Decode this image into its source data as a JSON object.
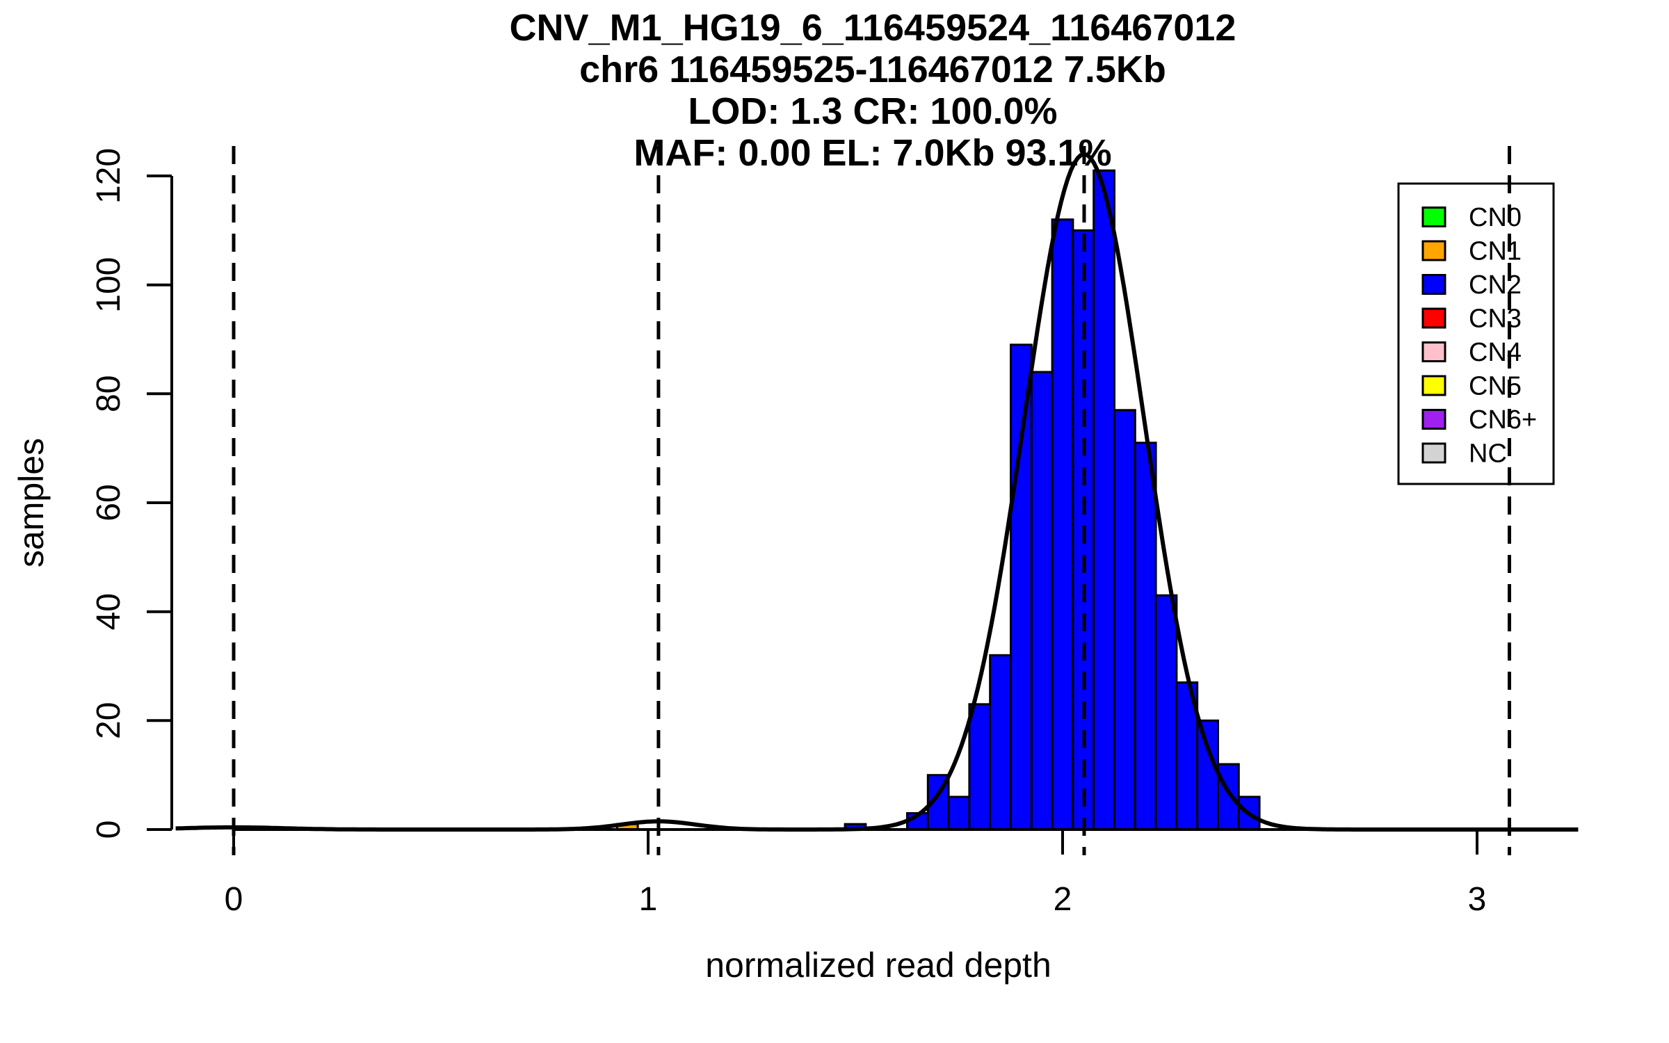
{
  "figure": {
    "title_lines": [
      "CNV_M1_HG19_6_116459524_116467012",
      "chr6 116459525-116467012 7.5Kb",
      "LOD: 1.3 CR: 100.0%",
      "MAF: 0.00 EL: 7.0Kb 93.1%"
    ],
    "x_label": "normalized read depth",
    "y_label": "samples"
  },
  "chart_data": {
    "type": "bar",
    "subtype": "histogram-with-fit-curve",
    "title": "CNV_M1_HG19_6_116459524_116467012",
    "subtitle_lines": [
      "chr6 116459525-116467012 7.5Kb",
      "LOD: 1.3 CR: 100.0%",
      "MAF: 0.00 EL: 7.0Kb 93.1%"
    ],
    "xlabel": "normalized read depth",
    "ylabel": "samples",
    "xlim": [
      -0.15,
      3.25
    ],
    "ylim": [
      0,
      120
    ],
    "x_ticks": [
      0,
      1,
      2,
      3
    ],
    "y_ticks": [
      0,
      20,
      40,
      60,
      80,
      100,
      120
    ],
    "grid": false,
    "bin_width": 0.05,
    "series": [
      {
        "name": "CN1",
        "color": "#FFA500",
        "bars": [
          {
            "x0": 0.925,
            "x1": 0.975,
            "count": 1
          }
        ]
      },
      {
        "name": "CN2",
        "color": "#0000FF",
        "bars": [
          {
            "x0": 1.475,
            "x1": 1.525,
            "count": 1
          },
          {
            "x0": 1.625,
            "x1": 1.675,
            "count": 3
          },
          {
            "x0": 1.675,
            "x1": 1.725,
            "count": 10
          },
          {
            "x0": 1.725,
            "x1": 1.775,
            "count": 6
          },
          {
            "x0": 1.775,
            "x1": 1.825,
            "count": 23
          },
          {
            "x0": 1.825,
            "x1": 1.875,
            "count": 32
          },
          {
            "x0": 1.875,
            "x1": 1.925,
            "count": 89
          },
          {
            "x0": 1.925,
            "x1": 1.975,
            "count": 84
          },
          {
            "x0": 1.975,
            "x1": 2.025,
            "count": 112
          },
          {
            "x0": 2.025,
            "x1": 2.075,
            "count": 110
          },
          {
            "x0": 2.075,
            "x1": 2.125,
            "count": 121
          },
          {
            "x0": 2.125,
            "x1": 2.175,
            "count": 77
          },
          {
            "x0": 2.175,
            "x1": 2.225,
            "count": 71
          },
          {
            "x0": 2.225,
            "x1": 2.275,
            "count": 43
          },
          {
            "x0": 2.275,
            "x1": 2.325,
            "count": 27
          },
          {
            "x0": 2.325,
            "x1": 2.375,
            "count": 20
          },
          {
            "x0": 2.375,
            "x1": 2.425,
            "count": 12
          },
          {
            "x0": 2.425,
            "x1": 2.475,
            "count": 6
          }
        ]
      }
    ],
    "dashed_lines_x": [
      0.0,
      1.025,
      2.052,
      3.078
    ],
    "fit_curve": {
      "color": "#000000",
      "components": [
        {
          "mean": 2.052,
          "sd": 0.145,
          "peak": 124
        },
        {
          "mean": 1.025,
          "sd": 0.09,
          "peak": 1.5
        },
        {
          "mean": 0.0,
          "sd": 0.12,
          "peak": 0.4
        }
      ]
    },
    "legend": {
      "position": "top-right",
      "items": [
        {
          "label": "CN0",
          "color": "#00FF00"
        },
        {
          "label": "CN1",
          "color": "#FFA500"
        },
        {
          "label": "CN2",
          "color": "#0000FF"
        },
        {
          "label": "CN3",
          "color": "#FF0000"
        },
        {
          "label": "CN4",
          "color": "#FFC0CB"
        },
        {
          "label": "CN5",
          "color": "#FFFF00"
        },
        {
          "label": "CN6+",
          "color": "#A020F0"
        },
        {
          "label": "NC",
          "color": "#D3D3D3"
        }
      ]
    },
    "colors": {
      "axis": "#000000",
      "background": "#FFFFFF",
      "bar_border": "#000000"
    }
  }
}
